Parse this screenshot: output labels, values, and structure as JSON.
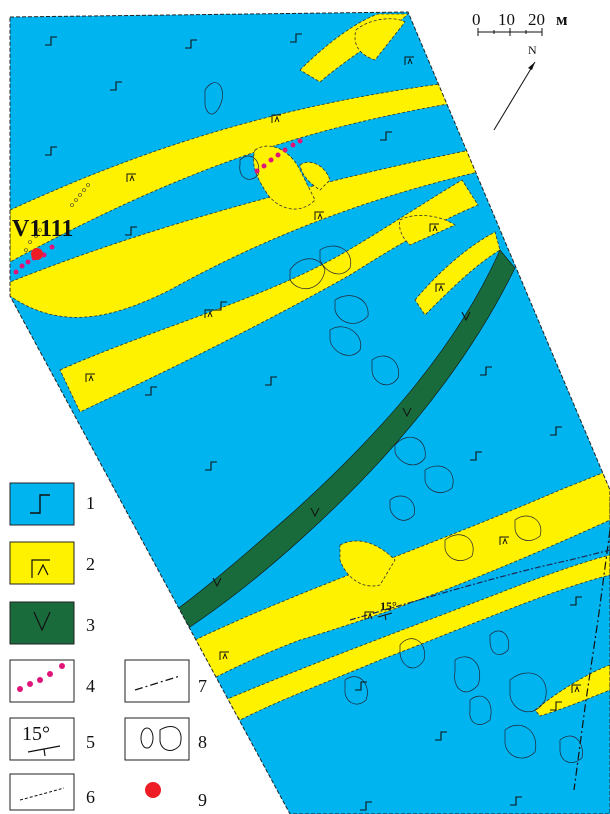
{
  "site_label": "V1111",
  "scale_bar": {
    "ticks": [
      "0",
      "10",
      "20"
    ],
    "unit": "м"
  },
  "north_label": "N",
  "dip_label": "15°",
  "colors": {
    "unit_1": "#00b4f0",
    "unit_2": "#fff200",
    "unit_3": "#1a6b3c",
    "dots_4": "#e0157a",
    "point_9": "#ee1c25"
  },
  "legend": [
    {
      "number": "1",
      "symbol": "basalt-sign",
      "fill": "#00b4f0"
    },
    {
      "number": "2",
      "symbol": "gabbro-sign",
      "fill": "#fff200"
    },
    {
      "number": "3",
      "symbol": "v-sign",
      "fill": "#1a6b3c"
    },
    {
      "number": "4",
      "symbol": "dotted-line-magenta"
    },
    {
      "number": "5",
      "symbol": "dip-strike",
      "text": "15°"
    },
    {
      "number": "6",
      "symbol": "dashed-line"
    },
    {
      "number": "7",
      "symbol": "dash-dot-line"
    },
    {
      "number": "8",
      "symbol": "outline-shapes"
    },
    {
      "number": "9",
      "symbol": "red-point"
    }
  ]
}
